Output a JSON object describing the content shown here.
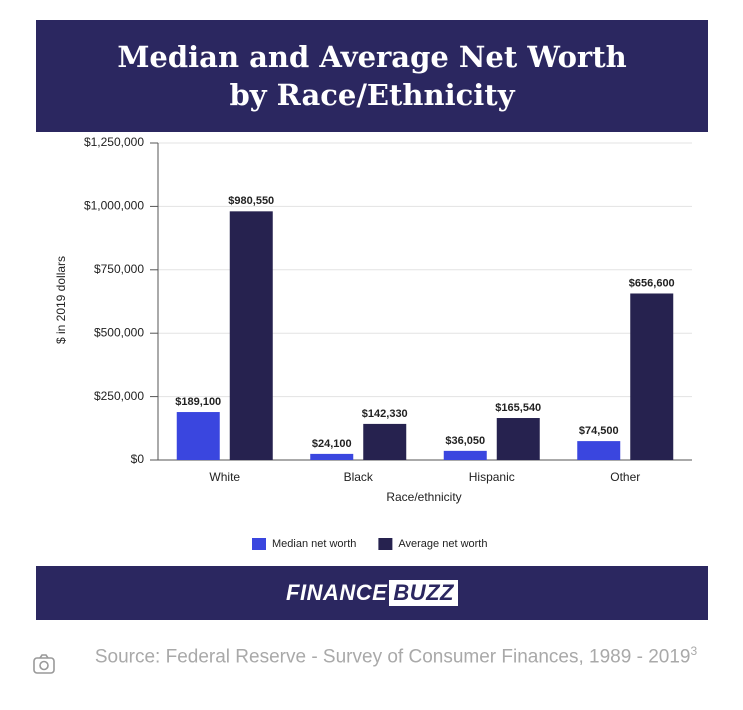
{
  "chart_data": {
    "type": "bar",
    "title": "Median and Average Net Worth by Race/Ethnicity",
    "x_label": "Race/ethnicity",
    "y_label": "$ in 2019 dollars",
    "categories": [
      "White",
      "Black",
      "Hispanic",
      "Other"
    ],
    "series": [
      {
        "name": "Median net worth",
        "color": "#3a46df",
        "values": [
          189100,
          24100,
          36050,
          74500
        ],
        "value_labels": [
          "$189,100",
          "$24,100",
          "$36,050",
          "$74,500"
        ]
      },
      {
        "name": "Average net worth",
        "color": "#26224f",
        "values": [
          980550,
          142330,
          165540,
          656600
        ],
        "value_labels": [
          "$980,550",
          "$142,330",
          "$165,540",
          "$656,600"
        ]
      }
    ],
    "ylim": [
      0,
      1250000
    ],
    "yticks": [
      {
        "value": 0,
        "label": "$0"
      },
      {
        "value": 250000,
        "label": "$250,000"
      },
      {
        "value": 500000,
        "label": "$500,000"
      },
      {
        "value": 750000,
        "label": "$750,000"
      },
      {
        "value": 1000000,
        "label": "$1,000,000"
      },
      {
        "value": 1250000,
        "label": "$1,250,000"
      }
    ],
    "grid": true,
    "legend": "bottom"
  },
  "brand": [
    "FINANCE",
    "BUZZ"
  ],
  "source": "Source: Federal Reserve - Survey of Consumer Finances, 1989 - 2019",
  "source_note": "3"
}
